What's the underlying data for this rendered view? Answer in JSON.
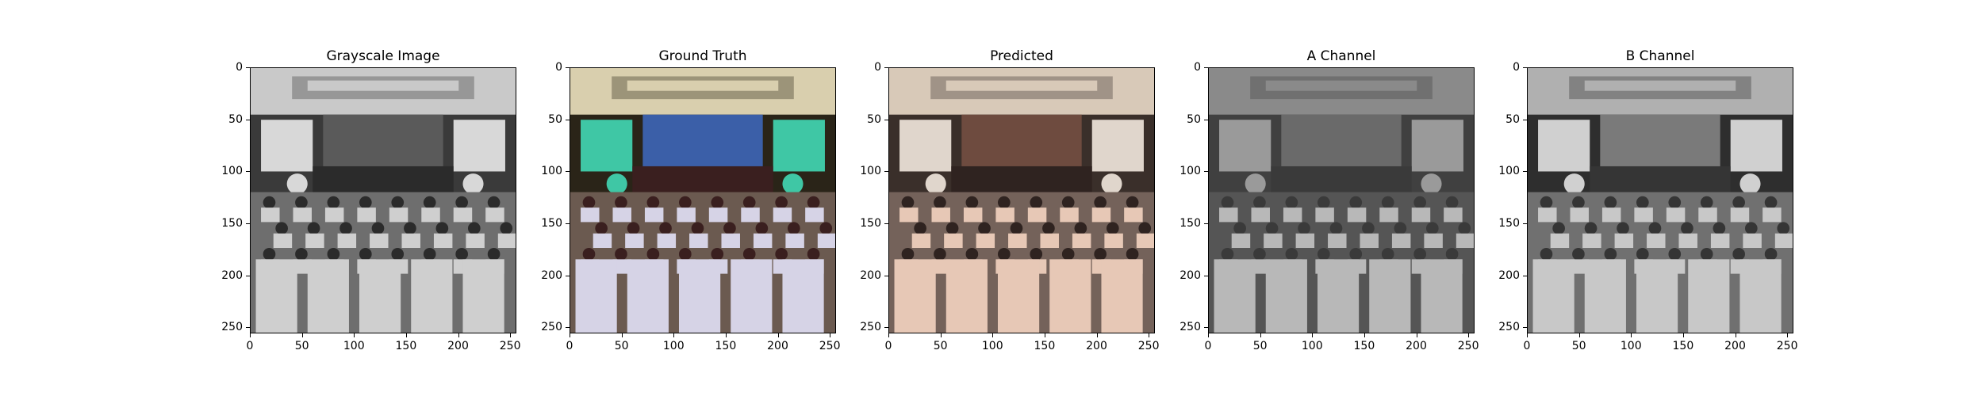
{
  "figure": {
    "panels": [
      {
        "title": "Grayscale Image",
        "palette": "gray"
      },
      {
        "title": "Ground Truth",
        "palette": "color"
      },
      {
        "title": "Predicted",
        "palette": "warm"
      },
      {
        "title": "A Channel",
        "palette": "achannel"
      },
      {
        "title": "B Channel",
        "palette": "bchannel"
      }
    ],
    "y_ticks": [
      "0",
      "50",
      "100",
      "150",
      "200",
      "250"
    ],
    "x_ticks": [
      "0",
      "50",
      "100",
      "150",
      "200",
      "250"
    ],
    "y_tick_values": [
      0,
      50,
      100,
      150,
      200,
      250
    ],
    "x_tick_values": [
      0,
      50,
      100,
      150,
      200,
      250
    ],
    "axis_max": 256
  },
  "colors": {
    "gray": {
      "ceiling": "#c9c9c9",
      "wall": "#3a3a3a",
      "screen": "#d8d8d8",
      "stage": "#5a5a5a",
      "chair": "#cfcfcf",
      "floor": "#6e6e6e",
      "people": "#2b2b2b"
    },
    "color": {
      "ceiling": "#d9cfae",
      "wall": "#2a2418",
      "screen": "#3fc7a5",
      "stage": "#3b5fa8",
      "chair": "#d6d3e6",
      "floor": "#6b5a50",
      "people": "#3a1f1f"
    },
    "warm": {
      "ceiling": "#d8c9b8",
      "wall": "#3a2f2a",
      "screen": "#e0d6cc",
      "stage": "#6e4b3f",
      "chair": "#e7c8b6",
      "floor": "#74625a",
      "people": "#2f2320"
    },
    "achannel": {
      "ceiling": "#8a8a8a",
      "wall": "#404040",
      "screen": "#9a9a9a",
      "stage": "#6a6a6a",
      "chair": "#b8b8b8",
      "floor": "#555555",
      "people": "#3a3a3a"
    },
    "bchannel": {
      "ceiling": "#b0b0b0",
      "wall": "#2e2e2e",
      "screen": "#d0d0d0",
      "stage": "#7a7a7a",
      "chair": "#c8c8c8",
      "floor": "#707070",
      "people": "#353535"
    }
  }
}
